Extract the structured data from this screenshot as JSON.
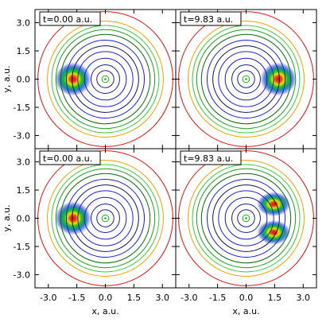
{
  "chart_data": {
    "type": "contour",
    "xlabel": "x, a.u.",
    "ylabel": "y, a.u.",
    "xlim": [
      -3.7,
      3.7
    ],
    "ylim": [
      -3.7,
      3.7
    ],
    "xticks": [
      -3.0,
      -1.5,
      0.0,
      1.5,
      3.0
    ],
    "yticks": [
      -3.0,
      -1.5,
      0.0,
      1.5,
      3.0
    ],
    "xtick_labels": [
      "-3.0",
      "-1.5",
      "0.0",
      "1.5",
      "3.0"
    ],
    "ytick_labels": [
      "-3.0",
      "-1.5",
      "0.0",
      "1.5",
      "3.0"
    ],
    "grid": false,
    "layout": "2x2 shared axes",
    "contour_circles": [
      {
        "r": 0.18,
        "color": "#1ab11a"
      },
      {
        "r": 0.45,
        "color": "#1a1a8c"
      },
      {
        "r": 0.75,
        "color": "#1a1a8c"
      },
      {
        "r": 1.1,
        "color": "#1a1acc"
      },
      {
        "r": 1.45,
        "color": "#2020e0"
      },
      {
        "r": 1.75,
        "color": "#101060"
      },
      {
        "r": 2.05,
        "color": "#1a1ae6"
      },
      {
        "r": 2.35,
        "color": "#0a6a0a"
      },
      {
        "r": 2.6,
        "color": "#1aa01a"
      },
      {
        "r": 2.82,
        "color": "#33cc33"
      },
      {
        "r": 3.05,
        "color": "#f0a000"
      },
      {
        "r": 3.55,
        "color": "#e01010"
      }
    ],
    "panels": [
      {
        "label": "t=0.00 a.u.",
        "blobs": [
          {
            "x": -1.7,
            "y": 0.0,
            "sx": 0.6,
            "sy": 0.55
          }
        ]
      },
      {
        "label": "t=9.83 a.u.",
        "blobs": [
          {
            "x": 1.7,
            "y": 0.0,
            "sx": 0.6,
            "sy": 0.55
          }
        ]
      },
      {
        "label": "t=0.00 a.u.",
        "blobs": [
          {
            "x": -1.7,
            "y": 0.0,
            "sx": 0.6,
            "sy": 0.55
          }
        ]
      },
      {
        "label": "t=9.83 a.u.",
        "blobs": [
          {
            "x": 1.45,
            "y": 0.75,
            "sx": 0.55,
            "sy": 0.4
          },
          {
            "x": 1.45,
            "y": -0.75,
            "sx": 0.55,
            "sy": 0.4
          }
        ]
      }
    ]
  }
}
